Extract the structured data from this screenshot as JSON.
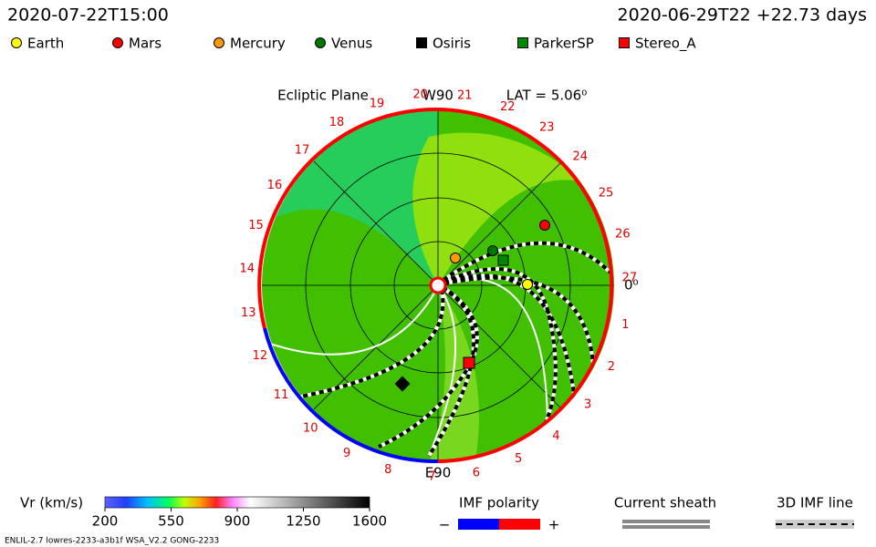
{
  "header": {
    "time": "2020-07-22T15:00",
    "run": "2020-06-29T22 +22.73 days"
  },
  "legend": [
    {
      "label": "Earth",
      "color": "#ffff00",
      "shape": "circle"
    },
    {
      "label": "Mars",
      "color": "#ff0000",
      "shape": "circle"
    },
    {
      "label": "Mercury",
      "color": "#ff9900",
      "shape": "circle"
    },
    {
      "label": "Venus",
      "color": "#007700",
      "shape": "circle"
    },
    {
      "label": "Osiris",
      "color": "#000000",
      "shape": "square"
    },
    {
      "label": "ParkerSP",
      "color": "#008800",
      "shape": "square"
    },
    {
      "label": "Stereo_A",
      "color": "#ff0000",
      "shape": "square"
    }
  ],
  "plot": {
    "title": "Ecliptic Plane",
    "latitude": "LAT = 5.06⁰",
    "top": "W90",
    "bottom": "E90",
    "right": "0⁰",
    "longitude_labels": [
      "1",
      "2",
      "3",
      "4",
      "5",
      "6",
      "7",
      "8",
      "9",
      "10",
      "11",
      "12",
      "13",
      "14",
      "15",
      "16",
      "17",
      "18",
      "19",
      "20",
      "21",
      "22",
      "23",
      "24",
      "25",
      "26",
      "27"
    ]
  },
  "colorbar": {
    "label": "Vr (km/s)",
    "range": [
      200,
      1600
    ],
    "ticks": [
      200,
      550,
      900,
      1250,
      1600
    ]
  },
  "imf": {
    "title": "IMF polarity",
    "minus": "−",
    "plus": "+"
  },
  "sheath": {
    "title": "Current sheath"
  },
  "imf_line": {
    "title": "3D IMF line"
  },
  "footer": "ENLIL-2.7 lowres-2233-a3b1f WSA_V2.2 GONG-2233"
}
